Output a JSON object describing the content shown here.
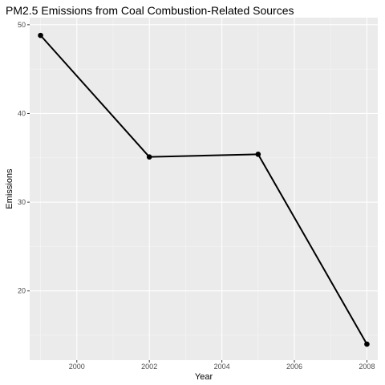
{
  "chart_data": {
    "type": "line",
    "title": "PM2.5 Emissions from Coal Combustion-Related Sources",
    "xlabel": "Year",
    "ylabel": "Emissions",
    "x": [
      1999,
      2002,
      2005,
      2008
    ],
    "series": [
      {
        "values": [
          48.8,
          35.1,
          35.4,
          14.0
        ]
      }
    ],
    "xlim": [
      1998.7,
      2008.3
    ],
    "ylim": [
      12.2,
      50.8
    ],
    "xticks": [
      2000,
      2002,
      2004,
      2006,
      2008
    ],
    "xtick_labels": [
      "2000",
      "2002",
      "2004",
      "2006",
      "2008"
    ],
    "yticks": [
      20,
      30,
      40,
      50
    ],
    "ytick_labels": [
      "20",
      "30",
      "40",
      "50"
    ],
    "grid": true,
    "legend": "none",
    "colors": {
      "panel_background": "#ebebeb",
      "grid_major": "#ffffff",
      "grid_minor": "#f5f5f5",
      "line": "#000000",
      "points": "#000000",
      "tick_label": "#4d4d4d",
      "tick_mark": "#333333"
    }
  }
}
